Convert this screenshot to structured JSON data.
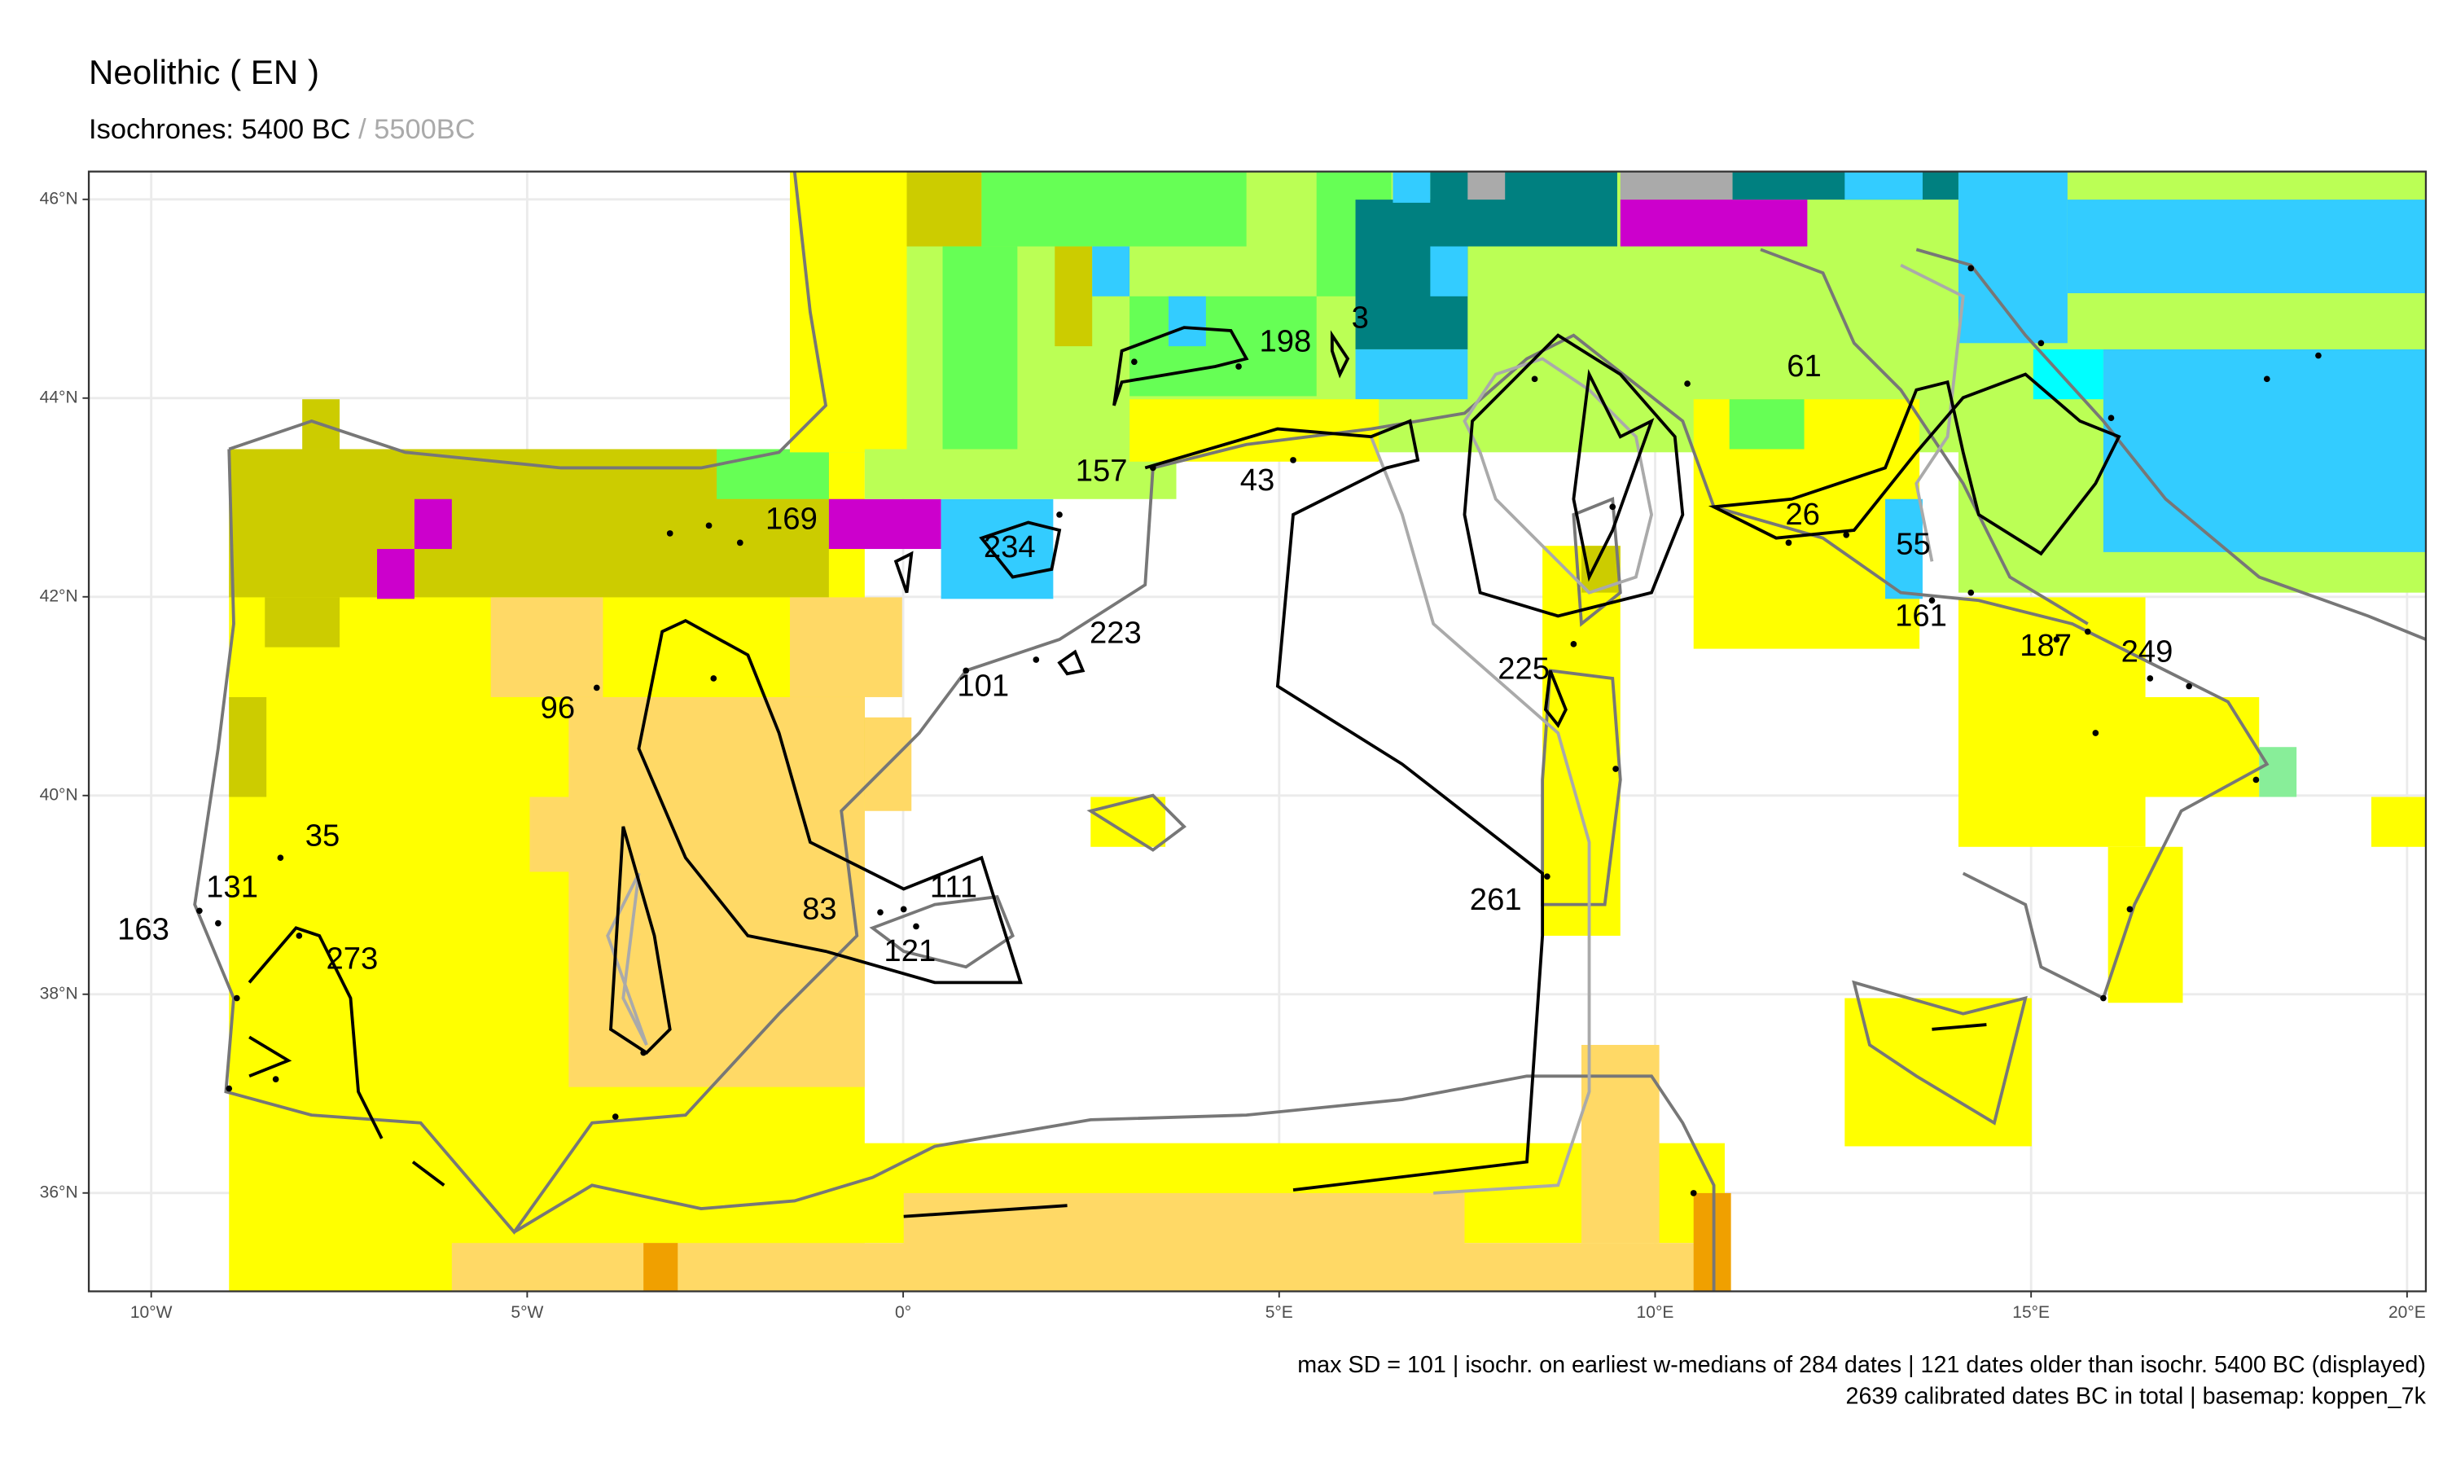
{
  "title": "Neolithic ( EN )",
  "subtitle": {
    "main": "Isochrones: 5400 BC",
    "secondary": "/ 5500BC"
  },
  "map": {
    "xlim": [
      -10.83,
      20.25
    ],
    "ylim": [
      35.01,
      46.28
    ],
    "xticks": [
      {
        "value": -10,
        "label": "10°W"
      },
      {
        "value": -5,
        "label": "5°W"
      },
      {
        "value": 0,
        "label": "0°"
      },
      {
        "value": 5,
        "label": "5°E"
      },
      {
        "value": 10,
        "label": "10°E"
      },
      {
        "value": 15,
        "label": "15°E"
      },
      {
        "value": 20,
        "label": "20°E"
      }
    ],
    "yticks": [
      {
        "value": 36,
        "label": "36°N"
      },
      {
        "value": 38,
        "label": "38°N"
      },
      {
        "value": 40,
        "label": "40°N"
      },
      {
        "value": 42,
        "label": "42°N"
      },
      {
        "value": 44,
        "label": "44°N"
      },
      {
        "value": 46,
        "label": "46°N"
      }
    ],
    "site_labels": [
      "169",
      "96",
      "35",
      "131",
      "163",
      "273",
      "83",
      "111",
      "121",
      "101",
      "223",
      "234",
      "157",
      "43",
      "198",
      "3",
      "61",
      "26",
      "55",
      "161",
      "187",
      "249",
      "225",
      "261"
    ]
  },
  "footer": [
    "max SD = 101 | isochr. on earliest w-medians of 284 dates |  121 dates older than isochr. 5400 BC (displayed)",
    "2639 calibrated dates BC in total | basemap: koppen_7k"
  ]
}
